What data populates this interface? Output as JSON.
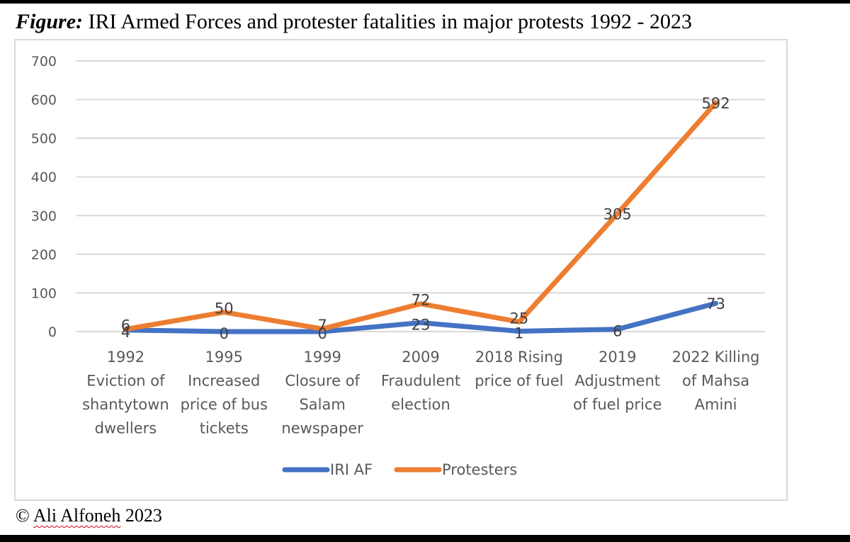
{
  "figure": {
    "title_prefix": "Figure:",
    "title_text": " IRI Armed Forces and protester fatalities in major protests 1992 - 2023",
    "footer_symbol": "©",
    "footer_name": "Ali Alfoneh",
    "footer_year": "2023"
  },
  "chart_data": {
    "type": "line",
    "title": "IRI Armed Forces and protester fatalities in major protests 1992 - 2023",
    "xlabel": "",
    "ylabel": "",
    "ylim": [
      0,
      700
    ],
    "yticks": [
      0,
      100,
      200,
      300,
      400,
      500,
      600,
      700
    ],
    "grid": true,
    "legend_position": "bottom",
    "categories": [
      [
        "1992",
        "Eviction of",
        "shantytown",
        "dwellers"
      ],
      [
        "1995",
        "Increased",
        "price of bus",
        "tickets"
      ],
      [
        "1999",
        "Closure of",
        "Salam",
        "newspaper"
      ],
      [
        "2009",
        "Fraudulent",
        "election"
      ],
      [
        "2018 Rising",
        "price of fuel"
      ],
      [
        "2019",
        "Adjustment",
        "of fuel price"
      ],
      [
        "2022 Killing",
        "of Mahsa",
        "Amini"
      ]
    ],
    "series": [
      {
        "name": "IRI AF",
        "color": "#4472c4",
        "values": [
          4,
          0,
          0,
          23,
          1,
          6,
          73
        ]
      },
      {
        "name": "Protesters",
        "color": "#ed7d31",
        "values": [
          6,
          50,
          7,
          72,
          25,
          305,
          592
        ]
      }
    ]
  }
}
